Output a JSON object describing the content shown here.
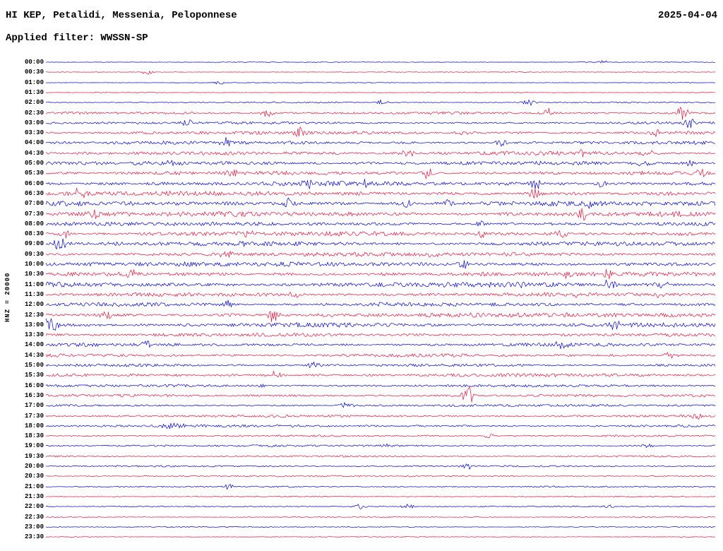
{
  "header": {
    "station_title": "HI KEP, Petalidi, Messenia, Peloponnese",
    "date": "2025-04-04",
    "filter_label": "Applied filter: WWSSN-SP"
  },
  "chart_data": {
    "type": "line",
    "subtype": "seismogram-helicorder",
    "title": "HI KEP, Petalidi, Messenia, Peloponnese",
    "date": "2025-04-04",
    "filter": "WWSSN-SP",
    "scale_label": "HNZ = 20000",
    "row_interval_minutes": 30,
    "trace_colors": {
      "blue": "#0000c8",
      "red": "#dc143c"
    },
    "legend": "48 rows of 30 minutes each, alternating blue and red traces; amplitude a is relative background noise level (0-1); e lists event bursts as [position_fraction, peak_px, half_width_px]",
    "rows": [
      {
        "t": "00:00",
        "c": "blue",
        "a": 0.12,
        "e": [
          [
            0.83,
            3
          ]
        ]
      },
      {
        "t": "00:30",
        "c": "red",
        "a": 0.12,
        "e": [
          [
            0.15,
            4
          ]
        ]
      },
      {
        "t": "01:00",
        "c": "blue",
        "a": 0.12,
        "e": [
          [
            0.26,
            3
          ]
        ]
      },
      {
        "t": "01:30",
        "c": "red",
        "a": 0.13,
        "e": []
      },
      {
        "t": "02:00",
        "c": "blue",
        "a": 0.25,
        "e": [
          [
            0.5,
            4
          ],
          [
            0.72,
            5
          ]
        ]
      },
      {
        "t": "02:30",
        "c": "red",
        "a": 0.45,
        "e": [
          [
            0.33,
            6
          ],
          [
            0.75,
            9
          ],
          [
            0.95,
            10
          ]
        ]
      },
      {
        "t": "03:00",
        "c": "blue",
        "a": 0.45,
        "e": [
          [
            0.21,
            5
          ],
          [
            0.96,
            8
          ]
        ]
      },
      {
        "t": "03:30",
        "c": "red",
        "a": 0.6,
        "e": [
          [
            0.38,
            7
          ],
          [
            0.62,
            5
          ],
          [
            0.91,
            5
          ]
        ]
      },
      {
        "t": "04:00",
        "c": "blue",
        "a": 0.6,
        "e": [
          [
            0.27,
            6
          ],
          [
            0.68,
            6
          ]
        ]
      },
      {
        "t": "04:30",
        "c": "red",
        "a": 0.7,
        "e": [
          [
            0.54,
            6
          ],
          [
            0.8,
            5
          ],
          [
            0.9,
            6
          ]
        ]
      },
      {
        "t": "05:00",
        "c": "blue",
        "a": 0.7,
        "e": [
          [
            0.19,
            6
          ],
          [
            0.89,
            6
          ],
          [
            0.96,
            5
          ]
        ]
      },
      {
        "t": "05:30",
        "c": "red",
        "a": 0.7,
        "e": [
          [
            0.28,
            5
          ],
          [
            0.57,
            9
          ],
          [
            0.98,
            6
          ]
        ]
      },
      {
        "t": "06:00",
        "c": "blue",
        "a": 0.8,
        "e": [
          [
            0.39,
            8
          ],
          [
            0.48,
            5
          ],
          [
            0.73,
            9
          ],
          [
            0.83,
            5
          ]
        ]
      },
      {
        "t": "06:30",
        "c": "red",
        "a": 0.8,
        "e": [
          [
            0.05,
            9
          ],
          [
            0.73,
            8
          ]
        ]
      },
      {
        "t": "07:00",
        "c": "blue",
        "a": 0.9,
        "e": [
          [
            0.36,
            7
          ],
          [
            0.54,
            7
          ],
          [
            0.6,
            6
          ],
          [
            0.81,
            6
          ]
        ]
      },
      {
        "t": "07:30",
        "c": "red",
        "a": 0.9,
        "e": [
          [
            0.07,
            9
          ],
          [
            0.8,
            9
          ]
        ]
      },
      {
        "t": "08:00",
        "c": "blue",
        "a": 0.7,
        "e": [
          [
            0.65,
            5
          ]
        ]
      },
      {
        "t": "08:30",
        "c": "red",
        "a": 0.8,
        "e": [
          [
            0.03,
            6
          ],
          [
            0.3,
            6
          ],
          [
            0.65,
            6
          ],
          [
            0.77,
            6
          ]
        ]
      },
      {
        "t": "09:00",
        "c": "blue",
        "a": 0.8,
        "e": [
          [
            0.02,
            10
          ],
          [
            0.3,
            6
          ]
        ]
      },
      {
        "t": "09:30",
        "c": "red",
        "a": 0.7,
        "e": [
          [
            0.27,
            6
          ],
          [
            0.58,
            5
          ]
        ]
      },
      {
        "t": "10:00",
        "c": "blue",
        "a": 0.8,
        "e": [
          [
            0.62,
            9
          ]
        ]
      },
      {
        "t": "10:30",
        "c": "red",
        "a": 0.8,
        "e": [
          [
            0.13,
            6
          ],
          [
            0.78,
            8
          ],
          [
            0.84,
            7
          ]
        ]
      },
      {
        "t": "11:00",
        "c": "blue",
        "a": 0.9,
        "e": [
          [
            0.71,
            6
          ],
          [
            0.84,
            9
          ],
          [
            0.92,
            6
          ]
        ]
      },
      {
        "t": "11:30",
        "c": "red",
        "a": 0.7,
        "e": [
          [
            0.37,
            5
          ],
          [
            0.79,
            5
          ],
          [
            0.92,
            6
          ]
        ]
      },
      {
        "t": "12:00",
        "c": "blue",
        "a": 0.7,
        "e": [
          [
            0.27,
            6
          ],
          [
            0.5,
            4
          ]
        ]
      },
      {
        "t": "12:30",
        "c": "red",
        "a": 0.8,
        "e": [
          [
            0.09,
            6
          ],
          [
            0.34,
            10
          ]
        ]
      },
      {
        "t": "13:00",
        "c": "blue",
        "a": 0.8,
        "e": [
          [
            0.005,
            8,
            12
          ],
          [
            0.85,
            6
          ]
        ]
      },
      {
        "t": "13:30",
        "c": "red",
        "a": 0.6,
        "e": []
      },
      {
        "t": "14:00",
        "c": "blue",
        "a": 0.6,
        "e": [
          [
            0.15,
            5
          ],
          [
            0.77,
            5
          ]
        ]
      },
      {
        "t": "14:30",
        "c": "red",
        "a": 0.6,
        "e": [
          [
            0.93,
            6
          ]
        ]
      },
      {
        "t": "15:00",
        "c": "blue",
        "a": 0.5,
        "e": [
          [
            0.4,
            5
          ]
        ]
      },
      {
        "t": "15:30",
        "c": "red",
        "a": 0.6,
        "e": [
          [
            0.34,
            8
          ]
        ]
      },
      {
        "t": "16:00",
        "c": "blue",
        "a": 0.5,
        "e": [
          [
            0.32,
            4
          ]
        ]
      },
      {
        "t": "16:30",
        "c": "red",
        "a": 0.5,
        "e": [
          [
            0.63,
            14
          ]
        ]
      },
      {
        "t": "17:00",
        "c": "blue",
        "a": 0.45,
        "e": [
          [
            0.45,
            5
          ]
        ]
      },
      {
        "t": "17:30",
        "c": "red",
        "a": 0.45,
        "e": [
          [
            0.97,
            5
          ]
        ]
      },
      {
        "t": "18:00",
        "c": "blue",
        "a": 0.45,
        "e": [
          [
            0.19,
            5,
            14
          ]
        ]
      },
      {
        "t": "18:30",
        "c": "red",
        "a": 0.35,
        "e": [
          [
            0.66,
            4
          ]
        ]
      },
      {
        "t": "19:00",
        "c": "blue",
        "a": 0.35,
        "e": [
          [
            0.51,
            4
          ],
          [
            0.9,
            4
          ]
        ]
      },
      {
        "t": "19:30",
        "c": "red",
        "a": 0.3,
        "e": []
      },
      {
        "t": "20:00",
        "c": "blue",
        "a": 0.3,
        "e": [
          [
            0.63,
            5
          ]
        ]
      },
      {
        "t": "20:30",
        "c": "red",
        "a": 0.28,
        "e": []
      },
      {
        "t": "21:00",
        "c": "blue",
        "a": 0.28,
        "e": [
          [
            0.27,
            4
          ]
        ]
      },
      {
        "t": "21:30",
        "c": "red",
        "a": 0.22,
        "e": []
      },
      {
        "t": "22:00",
        "c": "blue",
        "a": 0.22,
        "e": [
          [
            0.47,
            4
          ],
          [
            0.54,
            4
          ],
          [
            0.84,
            3
          ]
        ]
      },
      {
        "t": "22:30",
        "c": "red",
        "a": 0.18,
        "e": []
      },
      {
        "t": "23:00",
        "c": "blue",
        "a": 0.18,
        "e": []
      },
      {
        "t": "23:30",
        "c": "red",
        "a": 0.14,
        "e": []
      }
    ]
  }
}
